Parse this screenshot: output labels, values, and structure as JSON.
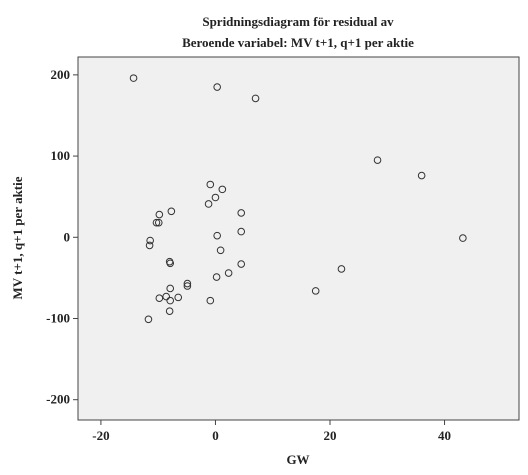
{
  "chart_data": {
    "type": "scatter",
    "title": "Spridningsdiagram för residual av",
    "subtitle": "Beroende variabel: MV t+1, q+1 per aktie",
    "x_label": "GW",
    "y_label": "MV t+1, q+1 per aktie",
    "x": [
      -14.3,
      0.3,
      7.0,
      28.3,
      36.0,
      43.2,
      -0.9,
      1.2,
      -1.2,
      0,
      -7.7,
      -9.8,
      4.5,
      -10.3,
      -9.9,
      4.5,
      0.3,
      -11.4,
      -11.5,
      0.9,
      -8.0,
      -7.9,
      4.5,
      2.3,
      22.0,
      0.2,
      -4.9,
      -4.9,
      -7.9,
      17.5,
      -8.6,
      -6.5,
      -9.8,
      -7.9,
      -0.9,
      -8.0,
      -11.7
    ],
    "values": [
      196,
      185,
      171,
      95,
      76,
      -1,
      65,
      59,
      41,
      49,
      32,
      28,
      30,
      18,
      18,
      7,
      2,
      -4,
      -10,
      -16,
      -30,
      -32,
      -33,
      -44,
      -39,
      -49,
      -57,
      -60,
      -63,
      -66,
      -73,
      -74,
      -75,
      -78,
      -78,
      -91,
      -101
    ],
    "xlim": [
      -24,
      53
    ],
    "ylim": [
      -225,
      222
    ],
    "xticks": [
      -20,
      0,
      20,
      40
    ],
    "yticks": [
      -200,
      -100,
      0,
      100,
      200
    ],
    "color": "#333333",
    "background": "#f0f0f0"
  }
}
